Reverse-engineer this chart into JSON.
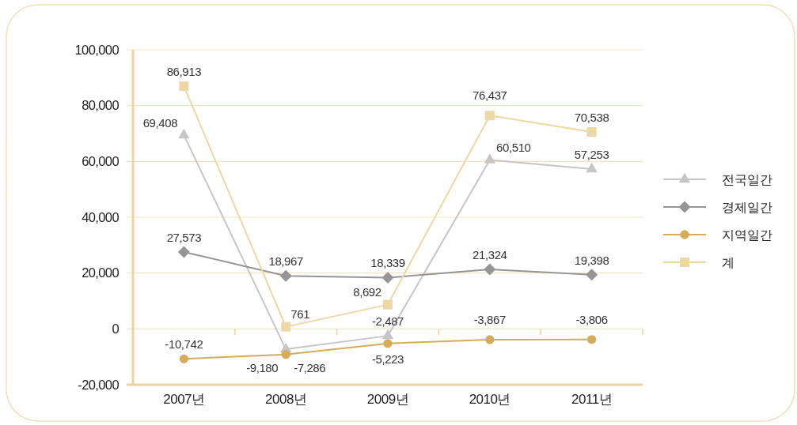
{
  "chart_data": {
    "type": "line",
    "categories": [
      "2007년",
      "2008년",
      "2009년",
      "2010년",
      "2011년"
    ],
    "series": [
      {
        "name": "전국일간",
        "color": "#c6c6c6",
        "marker": "triangle",
        "values": [
          69408,
          -7286,
          -2487,
          60510,
          57253
        ],
        "value_labels": [
          "69,408",
          "-7,286",
          "-2,487",
          "60,510",
          "57,253"
        ]
      },
      {
        "name": "경제일간",
        "color": "#959595",
        "marker": "diamond",
        "values": [
          27573,
          18967,
          18339,
          21324,
          19398
        ],
        "value_labels": [
          "27,573",
          "18,967",
          "18,339",
          "21,324",
          "19,398"
        ]
      },
      {
        "name": "지역일간",
        "color": "#d4ac5c",
        "marker": "circle",
        "values": [
          -10742,
          -9180,
          -5223,
          -3867,
          -3806
        ],
        "value_labels": [
          "-10,742",
          "-9,180",
          "-5,223",
          "-3,867",
          "-3,806"
        ]
      },
      {
        "name": "계",
        "color": "#ecd7a8",
        "marker": "square",
        "values": [
          86913,
          761,
          8692,
          76437,
          70538
        ],
        "value_labels": [
          "86,913",
          "761",
          "8,692",
          "76,437",
          "70,538"
        ]
      }
    ],
    "ylim": [
      -20000,
      100000
    ],
    "yticks": [
      {
        "value": -20000,
        "label": "-20,000"
      },
      0,
      {
        "value": 20000,
        "label": "20,000"
      },
      {
        "value": 40000,
        "label": "40,000"
      },
      {
        "value": 60000,
        "label": "60,000"
      },
      {
        "value": 80000,
        "label": "80,000"
      },
      {
        "value": 100000,
        "label": "100,000"
      }
    ],
    "grid": "y",
    "legend": "right"
  }
}
